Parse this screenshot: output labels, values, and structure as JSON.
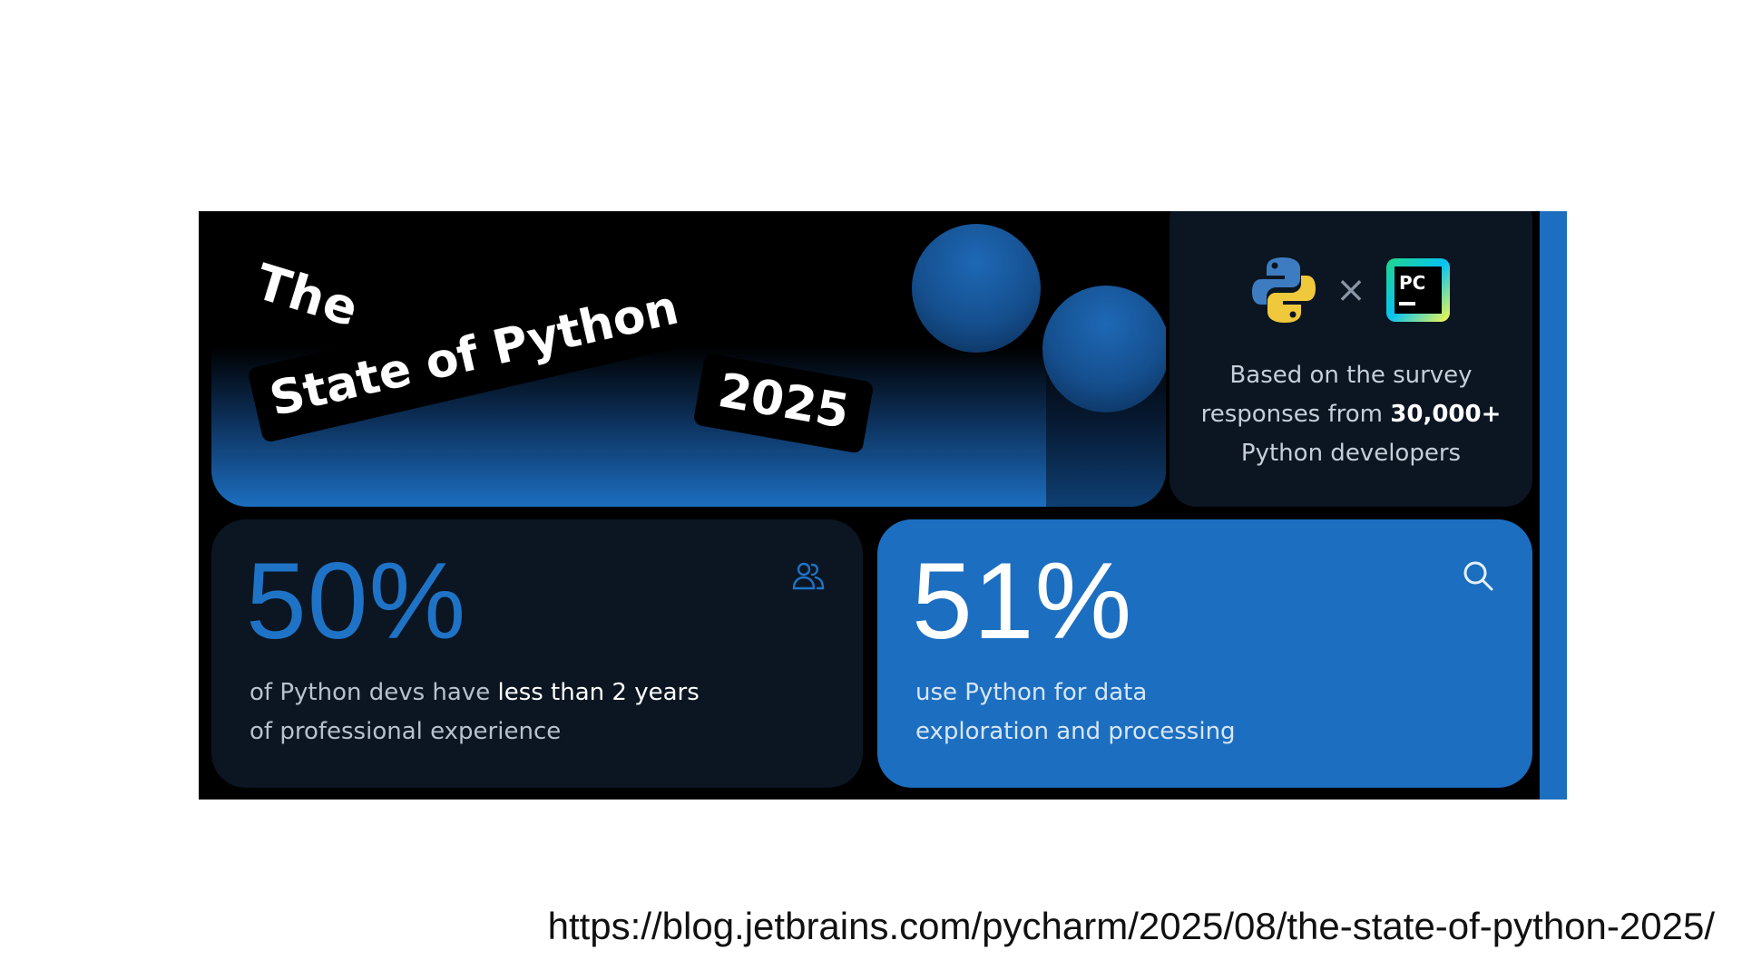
{
  "banner": {
    "title_the": "The",
    "title_main": "State of Python",
    "title_year": "2025"
  },
  "survey": {
    "text_pre": "Based on the survey responses from ",
    "count": "30,000+",
    "text_post": " Python developers",
    "pycharm_logo_text": "PC"
  },
  "stats": [
    {
      "value": "50%",
      "caption_pre": "of Python devs have ",
      "caption_highlight": "less than 2 years",
      "caption_post": " of professional experience",
      "icon": "people-icon"
    },
    {
      "value": "51%",
      "caption": "use Python for data exploration and processing",
      "icon": "search-icon"
    }
  ],
  "footer": {
    "url": "https://blog.jetbrains.com/pycharm/2025/08/the-state-of-python-2025/"
  },
  "colors": {
    "background": "#ffffff",
    "banner": "#000000",
    "accent_blue": "#1c6ec0",
    "card_dark": "#0b1622",
    "stat_blue": "#1f73c7"
  }
}
